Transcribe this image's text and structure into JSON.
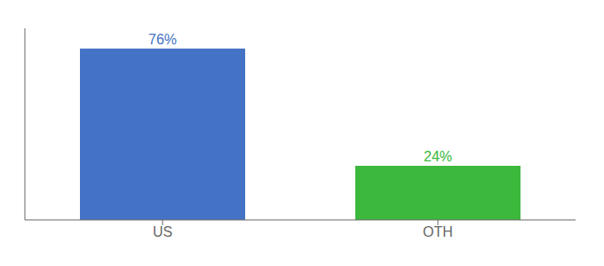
{
  "chart_data": {
    "type": "bar",
    "categories": [
      "US",
      "OTH"
    ],
    "values": [
      76,
      24
    ],
    "value_labels": [
      "76%",
      "24%"
    ],
    "colors": [
      "#4472c4",
      "#3cb83c"
    ],
    "ylim": [
      0,
      85
    ],
    "data_labels": true,
    "tick_labels": "x"
  }
}
